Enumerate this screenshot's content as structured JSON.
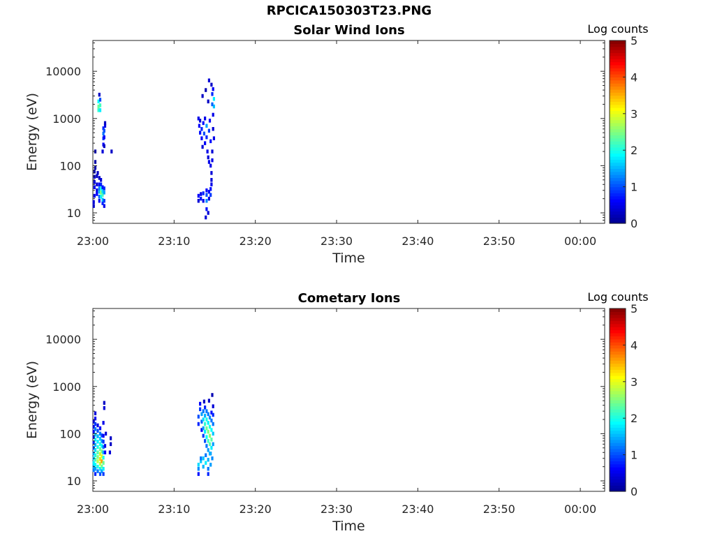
{
  "figure": {
    "title": "RPCICA150303T23.PNG"
  },
  "colorbar": {
    "label": "Log counts",
    "ticks": [
      "0",
      "1",
      "2",
      "3",
      "4",
      "5"
    ],
    "colormap": [
      "#00008f",
      "#0000ff",
      "#0080ff",
      "#00ffff",
      "#80ff80",
      "#ffff00",
      "#ff8000",
      "#ff0000",
      "#800000"
    ]
  },
  "chart_data": [
    {
      "type": "heatmap",
      "title": "Solar Wind Ions",
      "xlabel": "Time",
      "ylabel": "Energy (eV)",
      "x_ticks": [
        "23:00",
        "23:10",
        "23:20",
        "23:30",
        "23:40",
        "23:50",
        "00:00"
      ],
      "y_ticks": [
        "10",
        "100",
        "1000",
        "10000"
      ],
      "y_scale": "log",
      "ylim": [
        6,
        45000
      ],
      "xlim_minutes": [
        0,
        63
      ],
      "zlim": [
        0,
        5
      ],
      "cells": [
        [
          0.1,
          14,
          0.3
        ],
        [
          0.1,
          17,
          0.4
        ],
        [
          0.2,
          23,
          0.5
        ],
        [
          0.2,
          35,
          0.5
        ],
        [
          0.2,
          45,
          0.4
        ],
        [
          0.2,
          58,
          0.3
        ],
        [
          0.2,
          75,
          0.2
        ],
        [
          0.3,
          90,
          0.2
        ],
        [
          0.3,
          120,
          0.1
        ],
        [
          0.3,
          200,
          0.1
        ],
        [
          0.5,
          25,
          0.6
        ],
        [
          0.5,
          30,
          0.5
        ],
        [
          0.5,
          40,
          0.4
        ],
        [
          0.5,
          60,
          0.3
        ],
        [
          0.6,
          70,
          0.3
        ],
        [
          0.8,
          18,
          0.6
        ],
        [
          0.8,
          22,
          1.1
        ],
        [
          0.8,
          28,
          1.5
        ],
        [
          0.8,
          33,
          1.2
        ],
        [
          0.8,
          40,
          0.6
        ],
        [
          0.8,
          55,
          0.3
        ],
        [
          1.0,
          22,
          1.8
        ],
        [
          1.0,
          27,
          2.5
        ],
        [
          1.0,
          33,
          2.0
        ],
        [
          1.0,
          40,
          0.8
        ],
        [
          1.0,
          50,
          0.4
        ],
        [
          1.2,
          16,
          0.8
        ],
        [
          1.2,
          19,
          1.6
        ],
        [
          1.2,
          24,
          2.2
        ],
        [
          1.2,
          29,
          1.7
        ],
        [
          1.2,
          35,
          0.7
        ],
        [
          1.4,
          14,
          0.5
        ],
        [
          1.4,
          18,
          0.9
        ],
        [
          1.4,
          27,
          1.4
        ],
        [
          1.4,
          33,
          0.8
        ],
        [
          0.7,
          1500,
          2.1
        ],
        [
          0.7,
          1800,
          2.4
        ],
        [
          0.7,
          2300,
          1.9
        ],
        [
          0.9,
          1500,
          1.8
        ],
        [
          0.9,
          1900,
          2.2
        ],
        [
          0.9,
          2500,
          1.0
        ],
        [
          0.8,
          3200,
          0.3
        ],
        [
          1.2,
          200,
          0.4
        ],
        [
          1.3,
          280,
          0.6
        ],
        [
          1.3,
          380,
          0.9
        ],
        [
          1.3,
          480,
          1.2
        ],
        [
          1.3,
          620,
          0.8
        ],
        [
          1.4,
          260,
          0.3
        ],
        [
          1.4,
          400,
          0.6
        ],
        [
          1.4,
          550,
          1.0
        ],
        [
          1.5,
          700,
          0.5
        ],
        [
          1.5,
          800,
          0.3
        ],
        [
          2.3,
          200,
          0.3
        ],
        [
          13.0,
          18,
          0.4
        ],
        [
          13.0,
          23,
          0.6
        ],
        [
          13.3,
          20,
          0.7
        ],
        [
          13.3,
          25,
          0.5
        ],
        [
          13.6,
          18,
          0.5
        ],
        [
          13.6,
          26,
          0.8
        ],
        [
          14.0,
          12,
          0.7
        ],
        [
          14.0,
          18,
          1.3
        ],
        [
          14.0,
          24,
          1.0
        ],
        [
          14.0,
          30,
          0.6
        ],
        [
          13.9,
          8,
          0.4
        ],
        [
          14.2,
          10,
          0.4
        ],
        [
          14.3,
          20,
          0.5
        ],
        [
          14.3,
          28,
          0.6
        ],
        [
          14.5,
          24,
          0.9
        ],
        [
          14.6,
          40,
          0.5
        ],
        [
          14.6,
          50,
          0.4
        ],
        [
          14.5,
          32,
          0.7
        ],
        [
          13.0,
          1000,
          0.5
        ],
        [
          13.1,
          700,
          0.6
        ],
        [
          13.2,
          500,
          0.7
        ],
        [
          13.2,
          900,
          0.4
        ],
        [
          13.4,
          380,
          0.6
        ],
        [
          13.4,
          600,
          0.8
        ],
        [
          13.5,
          250,
          0.4
        ],
        [
          13.6,
          800,
          0.7
        ],
        [
          13.7,
          480,
          1.0
        ],
        [
          13.8,
          300,
          0.6
        ],
        [
          13.8,
          1000,
          0.5
        ],
        [
          14.0,
          700,
          1.4
        ],
        [
          14.0,
          400,
          0.8
        ],
        [
          14.1,
          200,
          0.5
        ],
        [
          14.2,
          150,
          0.4
        ],
        [
          14.3,
          120,
          0.5
        ],
        [
          14.3,
          550,
          0.9
        ],
        [
          14.4,
          900,
          0.6
        ],
        [
          14.5,
          330,
          0.7
        ],
        [
          14.5,
          100,
          0.5
        ],
        [
          14.6,
          70,
          0.4
        ],
        [
          14.7,
          200,
          0.4
        ],
        [
          14.7,
          130,
          0.5
        ],
        [
          14.8,
          600,
          0.4
        ],
        [
          14.9,
          380,
          0.5
        ],
        [
          14.8,
          1200,
          0.5
        ],
        [
          14.9,
          1800,
          1.6
        ],
        [
          14.9,
          2600,
          1.8
        ],
        [
          14.7,
          3300,
          0.8
        ],
        [
          14.8,
          4200,
          0.6
        ],
        [
          14.6,
          5200,
          0.3
        ],
        [
          14.3,
          6400,
          0.4
        ],
        [
          13.9,
          4000,
          0.2
        ],
        [
          13.5,
          3000,
          0.3
        ],
        [
          14.2,
          2300,
          0.3
        ],
        [
          14.7,
          2000,
          1.1
        ]
      ]
    },
    {
      "type": "heatmap",
      "title": "Cometary Ions",
      "xlabel": "Time",
      "ylabel": "Energy (eV)",
      "x_ticks": [
        "23:00",
        "23:10",
        "23:20",
        "23:30",
        "23:40",
        "23:50",
        "00:00"
      ],
      "y_ticks": [
        "10",
        "100",
        "1000",
        "10000"
      ],
      "y_scale": "log",
      "ylim": [
        6,
        45000
      ],
      "xlim_minutes": [
        0,
        63
      ],
      "zlim": [
        0,
        5
      ],
      "cells": [
        [
          0.1,
          17,
          1.2
        ],
        [
          0.1,
          20,
          1.5
        ],
        [
          0.1,
          24,
          1.8
        ],
        [
          0.1,
          30,
          1.6
        ],
        [
          0.1,
          38,
          1.4
        ],
        [
          0.1,
          50,
          1.0
        ],
        [
          0.1,
          65,
          0.8
        ],
        [
          0.1,
          85,
          0.6
        ],
        [
          0.1,
          110,
          0.5
        ],
        [
          0.1,
          140,
          0.4
        ],
        [
          0.1,
          180,
          0.3
        ],
        [
          0.3,
          14,
          0.8
        ],
        [
          0.3,
          18,
          1.4
        ],
        [
          0.3,
          22,
          1.9
        ],
        [
          0.3,
          28,
          2.2
        ],
        [
          0.3,
          35,
          2.0
        ],
        [
          0.3,
          45,
          1.7
        ],
        [
          0.3,
          58,
          1.5
        ],
        [
          0.3,
          75,
          1.8
        ],
        [
          0.3,
          95,
          1.6
        ],
        [
          0.3,
          125,
          1.2
        ],
        [
          0.3,
          160,
          0.9
        ],
        [
          0.3,
          210,
          0.6
        ],
        [
          0.3,
          270,
          0.4
        ],
        [
          0.6,
          16,
          1.2
        ],
        [
          0.6,
          20,
          2.0
        ],
        [
          0.6,
          26,
          2.8
        ],
        [
          0.6,
          32,
          2.5
        ],
        [
          0.6,
          40,
          2.3
        ],
        [
          0.6,
          52,
          2.0
        ],
        [
          0.6,
          68,
          1.8
        ],
        [
          0.6,
          88,
          1.5
        ],
        [
          0.6,
          115,
          1.0
        ],
        [
          0.6,
          150,
          0.5
        ],
        [
          0.9,
          14,
          1.0
        ],
        [
          0.9,
          18,
          1.8
        ],
        [
          0.9,
          23,
          2.8
        ],
        [
          0.9,
          29,
          3.3
        ],
        [
          0.9,
          37,
          2.9
        ],
        [
          0.9,
          47,
          2.4
        ],
        [
          0.9,
          60,
          2.0
        ],
        [
          0.9,
          78,
          1.6
        ],
        [
          0.9,
          100,
          1.2
        ],
        [
          0.9,
          130,
          0.6
        ],
        [
          1.1,
          16,
          1.4
        ],
        [
          1.1,
          20,
          2.4
        ],
        [
          1.1,
          26,
          3.6
        ],
        [
          1.1,
          33,
          3.0
        ],
        [
          1.1,
          42,
          2.5
        ],
        [
          1.1,
          55,
          1.9
        ],
        [
          1.1,
          70,
          1.4
        ],
        [
          1.1,
          92,
          1.0
        ],
        [
          1.3,
          14,
          0.9
        ],
        [
          1.3,
          18,
          1.8
        ],
        [
          1.3,
          24,
          2.4
        ],
        [
          1.3,
          31,
          2.0
        ],
        [
          1.3,
          40,
          1.5
        ],
        [
          1.3,
          52,
          1.2
        ],
        [
          1.3,
          68,
          0.9
        ],
        [
          1.3,
          90,
          0.6
        ],
        [
          1.3,
          170,
          0.5
        ],
        [
          1.5,
          40,
          0.6
        ],
        [
          1.5,
          55,
          0.5
        ],
        [
          1.4,
          350,
          0.4
        ],
        [
          1.4,
          450,
          0.3
        ],
        [
          1.6,
          100,
          0.4
        ],
        [
          2.1,
          40,
          0.4
        ],
        [
          2.2,
          60,
          0.3
        ],
        [
          2.2,
          80,
          0.3
        ],
        [
          13.0,
          14,
          0.7
        ],
        [
          13.0,
          18,
          1.3
        ],
        [
          13.0,
          22,
          1.7
        ],
        [
          13.3,
          26,
          1.6
        ],
        [
          13.3,
          30,
          1.2
        ],
        [
          13.6,
          20,
          1.5
        ],
        [
          13.6,
          30,
          1.6
        ],
        [
          13.9,
          24,
          1.8
        ],
        [
          13.9,
          35,
          1.2
        ],
        [
          14.2,
          14,
          0.8
        ],
        [
          14.2,
          18,
          1.2
        ],
        [
          14.2,
          28,
          1.5
        ],
        [
          14.5,
          22,
          1.4
        ],
        [
          14.5,
          38,
          1.4
        ],
        [
          14.7,
          30,
          1.3
        ],
        [
          13.0,
          160,
          0.8
        ],
        [
          13.0,
          230,
          1.0
        ],
        [
          13.2,
          330,
          0.9
        ],
        [
          13.2,
          430,
          0.6
        ],
        [
          13.4,
          120,
          0.6
        ],
        [
          13.4,
          180,
          1.1
        ],
        [
          13.4,
          260,
          1.4
        ],
        [
          13.6,
          90,
          0.9
        ],
        [
          13.6,
          130,
          1.4
        ],
        [
          13.6,
          200,
          1.7
        ],
        [
          13.6,
          300,
          1.2
        ],
        [
          13.8,
          70,
          1.0
        ],
        [
          13.8,
          110,
          1.8
        ],
        [
          13.8,
          160,
          2.1
        ],
        [
          13.8,
          240,
          1.5
        ],
        [
          13.8,
          360,
          0.8
        ],
        [
          14.0,
          55,
          1.2
        ],
        [
          14.0,
          85,
          1.9
        ],
        [
          14.0,
          130,
          2.4
        ],
        [
          14.0,
          200,
          2.0
        ],
        [
          14.0,
          300,
          1.2
        ],
        [
          14.2,
          45,
          1.4
        ],
        [
          14.2,
          70,
          2.2
        ],
        [
          14.2,
          110,
          2.5
        ],
        [
          14.2,
          170,
          1.8
        ],
        [
          14.2,
          260,
          1.2
        ],
        [
          14.4,
          38,
          1.5
        ],
        [
          14.4,
          60,
          2.3
        ],
        [
          14.4,
          90,
          2.6
        ],
        [
          14.4,
          140,
          2.0
        ],
        [
          14.4,
          220,
          1.3
        ],
        [
          14.6,
          50,
          1.8
        ],
        [
          14.6,
          75,
          2.3
        ],
        [
          14.6,
          120,
          1.9
        ],
        [
          14.6,
          190,
          1.2
        ],
        [
          14.6,
          280,
          0.7
        ],
        [
          14.8,
          60,
          1.4
        ],
        [
          14.8,
          100,
          1.6
        ],
        [
          14.8,
          160,
          1.2
        ],
        [
          14.8,
          250,
          0.8
        ],
        [
          14.8,
          380,
          0.4
        ],
        [
          14.7,
          660,
          0.2
        ],
        [
          14.3,
          500,
          0.3
        ],
        [
          13.7,
          480,
          0.3
        ]
      ]
    }
  ]
}
